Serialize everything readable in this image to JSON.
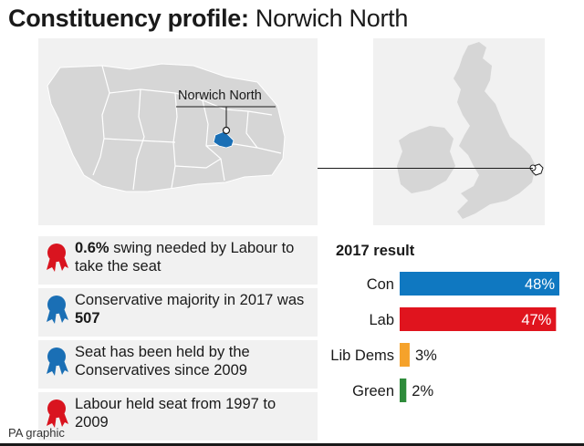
{
  "header": {
    "title_bold": "Constituency profile:",
    "title_regular": "Norwich North"
  },
  "map": {
    "label": "Norwich North",
    "highlight_color": "#1a6fb5",
    "region_color": "#d6d6d6"
  },
  "facts": [
    {
      "party": "Labour",
      "color": "#d9141f",
      "bold": "0.6%",
      "pre": "",
      "post": " swing needed by Labour to take the seat"
    },
    {
      "party": "Conservative",
      "color": "#1a6fb5",
      "bold": "507",
      "pre": "Conservative majority in 2017 was ",
      "post": ""
    },
    {
      "party": "Conservative",
      "color": "#1a6fb5",
      "bold": "",
      "pre": "Seat has been held by the Conservatives since 2009",
      "post": ""
    },
    {
      "party": "Labour",
      "color": "#d9141f",
      "bold": "",
      "pre": "Labour held seat from 1997 to 2009",
      "post": ""
    }
  ],
  "results": {
    "title": "2017 result"
  },
  "chart_data": {
    "type": "bar",
    "orientation": "horizontal",
    "title": "2017 result",
    "categories": [
      "Con",
      "Lab",
      "Lib Dems",
      "Green"
    ],
    "values": [
      48,
      47,
      3,
      2
    ],
    "value_labels": [
      "48%",
      "47%",
      "3%",
      "2%"
    ],
    "colors": [
      "#0f78c1",
      "#e0141e",
      "#f5a22b",
      "#2e8b3a"
    ],
    "unit": "%",
    "xlim": [
      0,
      48
    ]
  },
  "footer": {
    "source": "PA graphic"
  }
}
